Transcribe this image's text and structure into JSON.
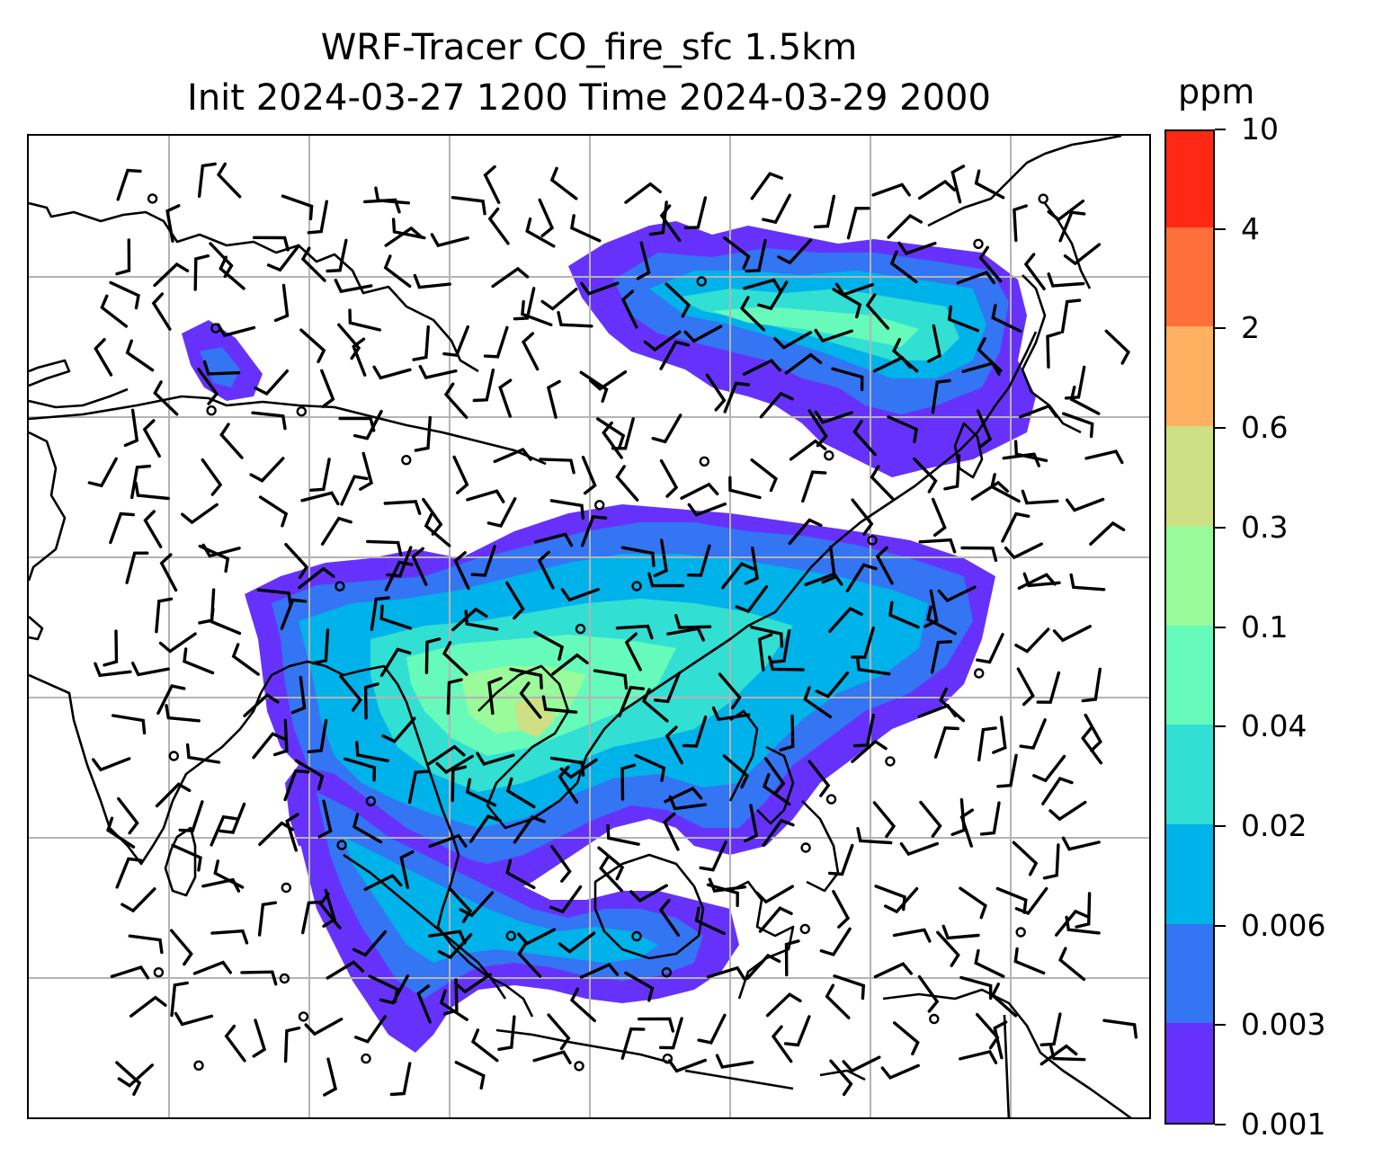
{
  "title": {
    "line1": "WRF-Tracer CO_fire_sfc 1.5km",
    "line2": "Init 2024-03-27 1200 Time 2024-03-29 2000"
  },
  "colorbar": {
    "unit": "ppm",
    "levels": [
      "0.001",
      "0.003",
      "0.006",
      "0.02",
      "0.04",
      "0.1",
      "0.3",
      "0.6",
      "2",
      "4",
      "10"
    ],
    "colors": [
      "#6632fb",
      "#3375f3",
      "#00b2ea",
      "#31dfd3",
      "#66fbbb",
      "#99fb99",
      "#cee083",
      "#ffb060",
      "#ff6f39",
      "#ff2814"
    ]
  },
  "map": {
    "gridlines": true,
    "grid_color": "#b4b4b4",
    "coastline_color": "#000000",
    "wind_barb_color": "#000000"
  }
}
